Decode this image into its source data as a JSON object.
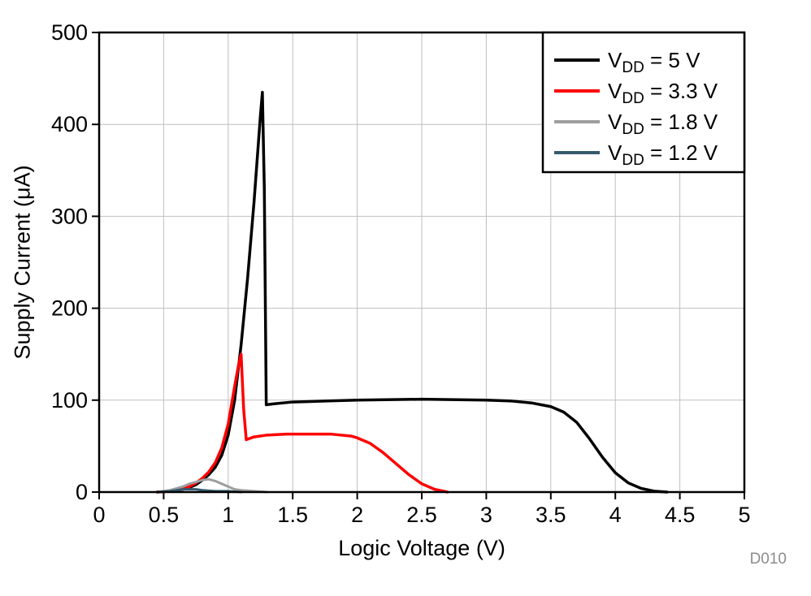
{
  "style": {
    "background": "#ffffff",
    "grid_color": "#bfbfbf",
    "axis_color": "#000000",
    "border_width": 2.5,
    "watermark_color": "#8c8c8c"
  },
  "chart_data": {
    "type": "line",
    "title": "",
    "xlabel": "Logic Voltage (V)",
    "ylabel": "Supply Current (μA)",
    "watermark": "D010",
    "xlim": [
      0,
      5
    ],
    "ylim": [
      0,
      500
    ],
    "xticks": [
      0,
      0.5,
      1,
      1.5,
      2,
      2.5,
      3,
      3.5,
      4,
      4.5,
      5
    ],
    "xtick_labels": [
      "0",
      "0.5",
      "1",
      "1.5",
      "2",
      "2.5",
      "3",
      "3.5",
      "4",
      "4.5",
      "5"
    ],
    "yticks": [
      0,
      100,
      200,
      300,
      400,
      500
    ],
    "ytick_labels": [
      "0",
      "100",
      "200",
      "300",
      "400",
      "500"
    ],
    "grid": true,
    "legend_position": "top-right",
    "series": [
      {
        "name": "VDD = 5 V",
        "legend": {
          "main": "V",
          "sub": "DD",
          "rest": " = 5 V"
        },
        "color": "#000000",
        "width": 3.5,
        "points": [
          [
            0.45,
            0
          ],
          [
            0.55,
            1
          ],
          [
            0.6,
            2
          ],
          [
            0.65,
            3
          ],
          [
            0.7,
            5
          ],
          [
            0.75,
            8
          ],
          [
            0.8,
            13
          ],
          [
            0.85,
            19
          ],
          [
            0.9,
            27
          ],
          [
            0.95,
            40
          ],
          [
            1.0,
            62
          ],
          [
            1.05,
            100
          ],
          [
            1.1,
            160
          ],
          [
            1.15,
            232
          ],
          [
            1.2,
            315
          ],
          [
            1.25,
            410
          ],
          [
            1.265,
            435
          ],
          [
            1.28,
            330
          ],
          [
            1.295,
            95
          ],
          [
            1.35,
            96
          ],
          [
            1.5,
            98
          ],
          [
            1.75,
            99
          ],
          [
            2.0,
            100
          ],
          [
            2.5,
            101
          ],
          [
            3.0,
            100
          ],
          [
            3.2,
            99
          ],
          [
            3.35,
            97
          ],
          [
            3.5,
            93
          ],
          [
            3.6,
            87
          ],
          [
            3.7,
            76
          ],
          [
            3.8,
            58
          ],
          [
            3.9,
            38
          ],
          [
            4.0,
            21
          ],
          [
            4.1,
            10
          ],
          [
            4.2,
            4
          ],
          [
            4.3,
            1
          ],
          [
            4.4,
            0
          ]
        ]
      },
      {
        "name": "VDD = 3.3 V",
        "legend": {
          "main": "V",
          "sub": "DD",
          "rest": " = 3.3 V"
        },
        "color": "#ff0000",
        "width": 3.5,
        "points": [
          [
            0.45,
            0
          ],
          [
            0.55,
            1
          ],
          [
            0.6,
            2
          ],
          [
            0.65,
            4
          ],
          [
            0.7,
            6
          ],
          [
            0.75,
            10
          ],
          [
            0.8,
            15
          ],
          [
            0.85,
            22
          ],
          [
            0.9,
            32
          ],
          [
            0.95,
            48
          ],
          [
            1.0,
            74
          ],
          [
            1.05,
            115
          ],
          [
            1.08,
            138
          ],
          [
            1.1,
            150
          ],
          [
            1.12,
            90
          ],
          [
            1.14,
            57
          ],
          [
            1.2,
            60
          ],
          [
            1.3,
            62
          ],
          [
            1.45,
            63
          ],
          [
            1.6,
            63
          ],
          [
            1.8,
            63
          ],
          [
            1.95,
            61
          ],
          [
            2.0,
            59
          ],
          [
            2.1,
            53
          ],
          [
            2.2,
            43
          ],
          [
            2.3,
            31
          ],
          [
            2.4,
            19
          ],
          [
            2.5,
            9
          ],
          [
            2.6,
            3
          ],
          [
            2.7,
            0
          ]
        ]
      },
      {
        "name": "VDD = 1.8 V",
        "legend": {
          "main": "V",
          "sub": "DD",
          "rest": " = 1.8 V"
        },
        "color": "#9e9e9e",
        "width": 3,
        "points": [
          [
            0.45,
            0
          ],
          [
            0.55,
            2
          ],
          [
            0.6,
            4
          ],
          [
            0.65,
            6
          ],
          [
            0.7,
            9
          ],
          [
            0.75,
            11
          ],
          [
            0.8,
            13
          ],
          [
            0.85,
            14
          ],
          [
            0.9,
            12
          ],
          [
            0.95,
            9
          ],
          [
            1.0,
            6
          ],
          [
            1.05,
            3
          ],
          [
            1.1,
            2
          ],
          [
            1.2,
            1
          ],
          [
            1.3,
            0
          ]
        ]
      },
      {
        "name": "VDD = 1.2 V",
        "legend": {
          "main": "V",
          "sub": "DD",
          "rest": " = 1.2 V"
        },
        "color": "#355a6e",
        "width": 3,
        "points": [
          [
            0.45,
            0
          ],
          [
            0.55,
            1
          ],
          [
            0.6,
            2
          ],
          [
            0.65,
            3
          ],
          [
            0.7,
            3
          ],
          [
            0.75,
            3
          ],
          [
            0.8,
            2
          ],
          [
            0.9,
            1
          ],
          [
            1.0,
            1
          ],
          [
            1.1,
            0
          ]
        ]
      }
    ]
  }
}
